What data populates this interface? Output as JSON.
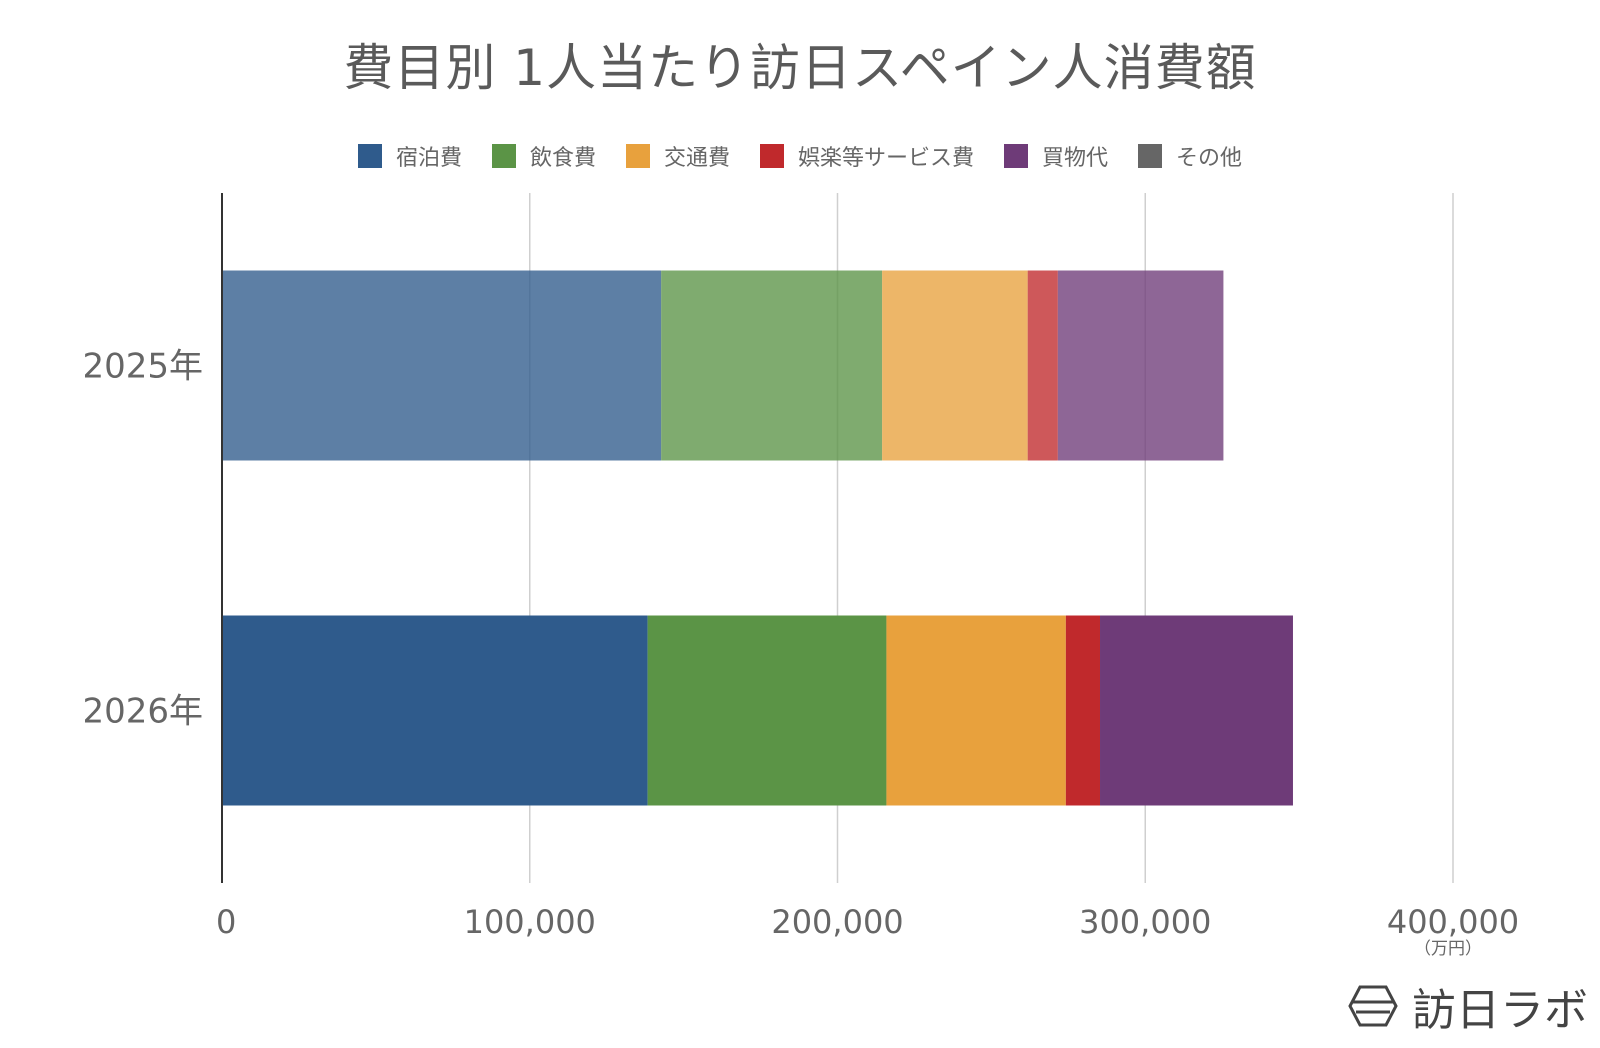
{
  "chart_data": {
    "type": "bar",
    "orientation": "horizontal",
    "stacked": true,
    "title": "費目別 1人当たり訪日スペイン人消費額",
    "categories": [
      "2025年",
      "2026年"
    ],
    "series": [
      {
        "name": "宿泊費",
        "color": "#2f5b8c",
        "values": [
          142700,
          138300
        ]
      },
      {
        "name": "飲食費",
        "color": "#5b9446",
        "values": [
          71800,
          77600
        ]
      },
      {
        "name": "交通費",
        "color": "#e8a13d",
        "values": [
          47300,
          58300
        ]
      },
      {
        "name": "娯楽等サービス費",
        "color": "#c0292c",
        "values": [
          9800,
          11100
        ]
      },
      {
        "name": "買物代",
        "color": "#6e3b78",
        "values": [
          53800,
          62700
        ]
      },
      {
        "name": "その他",
        "color": "#666666",
        "values": [
          0,
          0
        ]
      }
    ],
    "xlim": [
      0,
      400000
    ],
    "xticks": [
      "0",
      "100,000",
      "200,000",
      "300,000",
      "400,000"
    ],
    "xunit": "（万円）",
    "faded_categories": [
      "2025年"
    ],
    "grid": true,
    "legend_position": "top"
  },
  "logo": {
    "text": "訪日ラボ",
    "icon": "hexagon-logo-icon"
  }
}
